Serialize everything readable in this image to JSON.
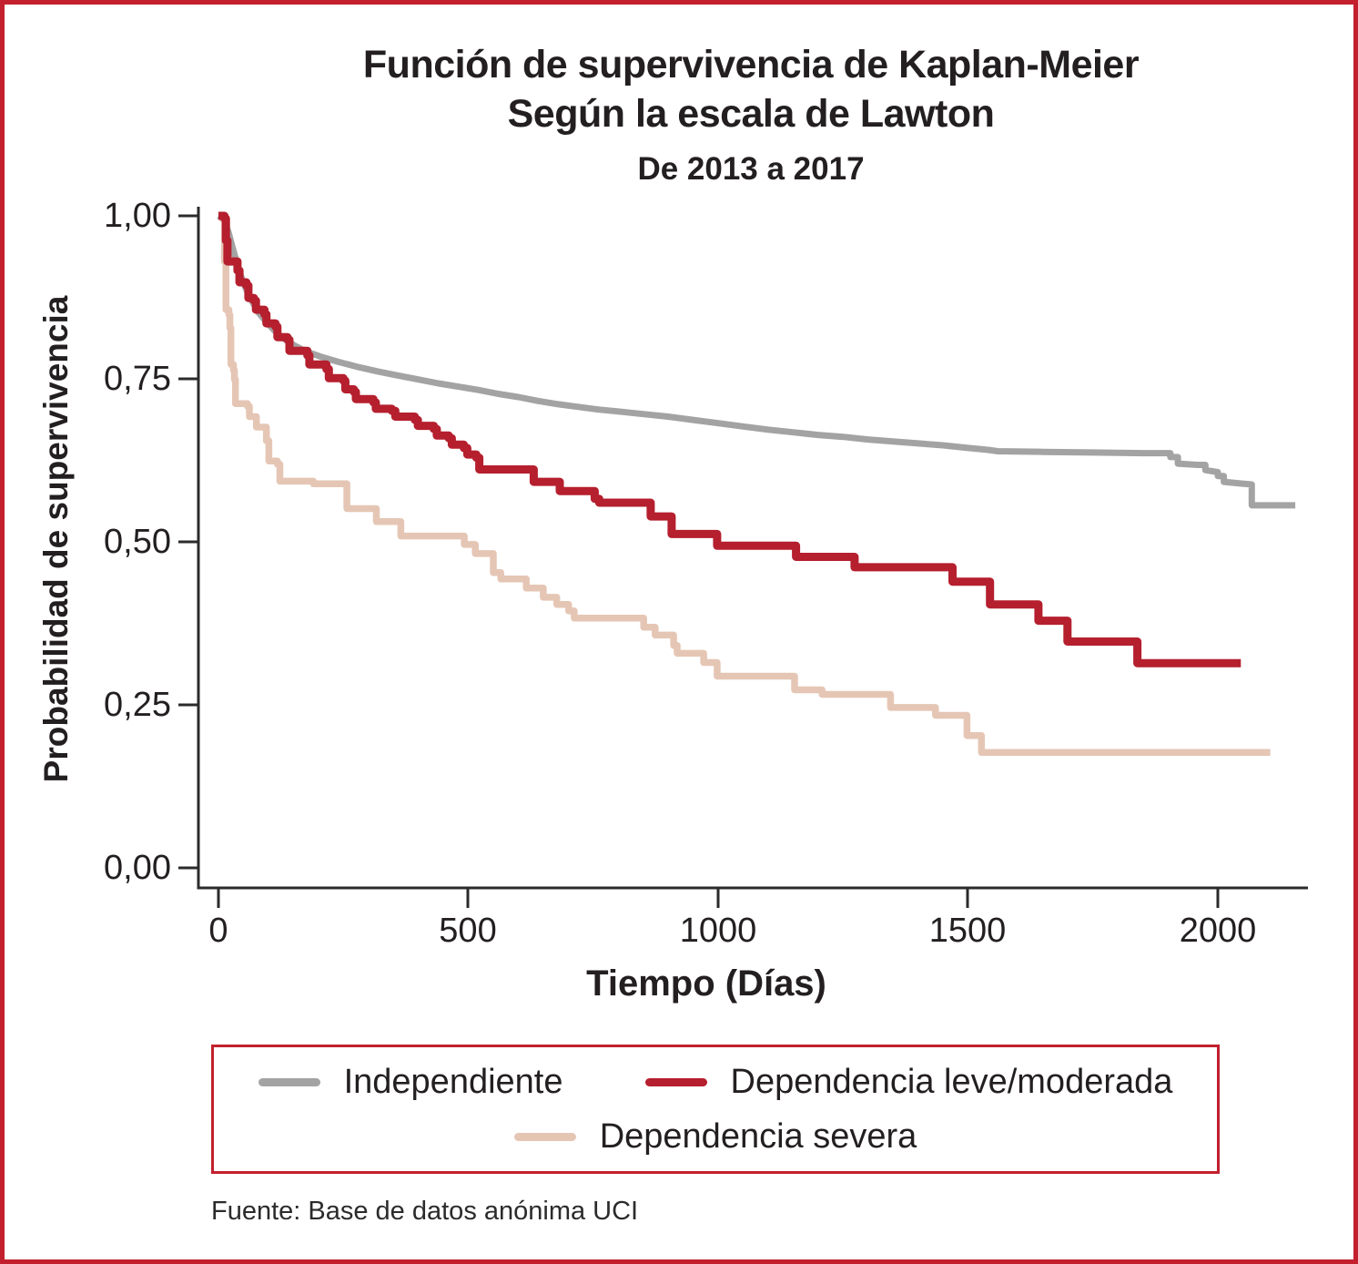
{
  "header": {
    "title_line1": "Función de supervivencia de Kaplan-Meier",
    "title_line2": "Según la escala de Lawton",
    "subtitle": "De 2013 a 2017"
  },
  "footer": {
    "text": "Fuente: Base de datos anónima UCI"
  },
  "colors": {
    "frame": "#c2202e",
    "legend_border": "#c2202e",
    "axis": "#2b2b2b",
    "independiente": "#a3a3a3",
    "dependencia_leve_moderada": "#b51f2e",
    "dependencia_severa": "#e5c6b5"
  },
  "legend": {
    "items": [
      {
        "label": "Independiente",
        "color": "#a3a3a3"
      },
      {
        "label": "Dependencia leve/moderada",
        "color": "#b51f2e"
      },
      {
        "label": "Dependencia severa",
        "color": "#e5c6b5"
      }
    ]
  },
  "chart_data": {
    "type": "line",
    "subtype": "kaplan-meier-survival-step",
    "title": "Función de supervivencia de Kaplan-Meier Según la escala de Lawton",
    "subtitle": "De 2013 a 2017",
    "xlabel": "Tiempo (Días)",
    "ylabel": "Probabilidad de supervivencia",
    "xlim": [
      0,
      2180
    ],
    "ylim": [
      0.0,
      1.0
    ],
    "grid": false,
    "legend_position": "bottom-boxed",
    "x_ticks": [
      {
        "value": 0,
        "label": "0"
      },
      {
        "value": 500,
        "label": "500"
      },
      {
        "value": 1000,
        "label": "1000"
      },
      {
        "value": 1500,
        "label": "1500"
      },
      {
        "value": 2000,
        "label": "2000"
      }
    ],
    "y_ticks": [
      {
        "value": 1.0,
        "label": "1,00"
      },
      {
        "value": 0.75,
        "label": "0,75"
      },
      {
        "value": 0.5,
        "label": "0,50"
      },
      {
        "value": 0.25,
        "label": "0,25"
      },
      {
        "value": 0.0,
        "label": "0,00"
      }
    ],
    "series": [
      {
        "name": "Independiente",
        "color": "#a3a3a3",
        "interpolation": "linear",
        "points": [
          [
            0,
            1.0
          ],
          [
            10,
            0.996
          ],
          [
            20,
            0.975
          ],
          [
            28,
            0.952
          ],
          [
            36,
            0.93
          ],
          [
            45,
            0.908
          ],
          [
            55,
            0.888
          ],
          [
            68,
            0.868
          ],
          [
            80,
            0.852
          ],
          [
            95,
            0.838
          ],
          [
            112,
            0.824
          ],
          [
            130,
            0.812
          ],
          [
            150,
            0.802
          ],
          [
            175,
            0.792
          ],
          [
            205,
            0.784
          ],
          [
            240,
            0.776
          ],
          [
            280,
            0.768
          ],
          [
            320,
            0.761
          ],
          [
            360,
            0.755
          ],
          [
            400,
            0.749
          ],
          [
            440,
            0.743
          ],
          [
            480,
            0.738
          ],
          [
            520,
            0.733
          ],
          [
            560,
            0.727
          ],
          [
            600,
            0.722
          ],
          [
            640,
            0.716
          ],
          [
            680,
            0.711
          ],
          [
            720,
            0.707
          ],
          [
            760,
            0.703
          ],
          [
            800,
            0.7
          ],
          [
            850,
            0.696
          ],
          [
            900,
            0.692
          ],
          [
            950,
            0.687
          ],
          [
            1000,
            0.682
          ],
          [
            1050,
            0.677
          ],
          [
            1100,
            0.672
          ],
          [
            1150,
            0.668
          ],
          [
            1200,
            0.664
          ],
          [
            1250,
            0.661
          ],
          [
            1300,
            0.657
          ],
          [
            1350,
            0.654
          ],
          [
            1400,
            0.651
          ],
          [
            1450,
            0.648
          ],
          [
            1500,
            0.644
          ],
          [
            1540,
            0.641
          ],
          [
            1560,
            0.639
          ],
          [
            1650,
            0.638
          ],
          [
            1750,
            0.637
          ],
          [
            1850,
            0.636
          ],
          [
            1905,
            0.636
          ],
          [
            1905,
            0.63
          ],
          [
            1920,
            0.63
          ],
          [
            1920,
            0.62
          ],
          [
            1960,
            0.618
          ],
          [
            1975,
            0.618
          ],
          [
            1975,
            0.61
          ],
          [
            2000,
            0.607
          ],
          [
            2000,
            0.601
          ],
          [
            2012,
            0.601
          ],
          [
            2012,
            0.592
          ],
          [
            2040,
            0.59
          ],
          [
            2068,
            0.588
          ],
          [
            2068,
            0.556
          ],
          [
            2155,
            0.556
          ]
        ]
      },
      {
        "name": "Dependencia leve/moderada",
        "color": "#b51f2e",
        "interpolation": "step",
        "points": [
          [
            0,
            1.0
          ],
          [
            12,
            0.996
          ],
          [
            15,
            0.962
          ],
          [
            18,
            0.93
          ],
          [
            38,
            0.916
          ],
          [
            42,
            0.898
          ],
          [
            56,
            0.893
          ],
          [
            60,
            0.874
          ],
          [
            71,
            0.87
          ],
          [
            75,
            0.856
          ],
          [
            92,
            0.849
          ],
          [
            96,
            0.835
          ],
          [
            114,
            0.83
          ],
          [
            118,
            0.814
          ],
          [
            138,
            0.81
          ],
          [
            142,
            0.793
          ],
          [
            178,
            0.786
          ],
          [
            182,
            0.772
          ],
          [
            216,
            0.765
          ],
          [
            221,
            0.751
          ],
          [
            250,
            0.747
          ],
          [
            254,
            0.734
          ],
          [
            271,
            0.73
          ],
          [
            275,
            0.719
          ],
          [
            310,
            0.714
          ],
          [
            315,
            0.704
          ],
          [
            347,
            0.701
          ],
          [
            354,
            0.692
          ],
          [
            393,
            0.687
          ],
          [
            399,
            0.678
          ],
          [
            431,
            0.673
          ],
          [
            437,
            0.663
          ],
          [
            461,
            0.659
          ],
          [
            467,
            0.649
          ],
          [
            491,
            0.644
          ],
          [
            498,
            0.634
          ],
          [
            516,
            0.629
          ],
          [
            522,
            0.611
          ],
          [
            631,
            0.592
          ],
          [
            683,
            0.578
          ],
          [
            753,
            0.566
          ],
          [
            762,
            0.56
          ],
          [
            865,
            0.539
          ],
          [
            907,
            0.512
          ],
          [
            998,
            0.494
          ],
          [
            1156,
            0.477
          ],
          [
            1273,
            0.461
          ],
          [
            1469,
            0.439
          ],
          [
            1544,
            0.404
          ],
          [
            1641,
            0.379
          ],
          [
            1699,
            0.347
          ],
          [
            1839,
            0.314
          ],
          [
            2046,
            0.314
          ]
        ]
      },
      {
        "name": "Dependencia severa",
        "color": "#e5c6b5",
        "interpolation": "step",
        "points": [
          [
            0,
            1.0
          ],
          [
            8,
            0.995
          ],
          [
            12,
            0.93
          ],
          [
            15,
            0.856
          ],
          [
            21,
            0.848
          ],
          [
            23,
            0.828
          ],
          [
            25,
            0.772
          ],
          [
            30,
            0.763
          ],
          [
            32,
            0.749
          ],
          [
            34,
            0.712
          ],
          [
            58,
            0.708
          ],
          [
            62,
            0.692
          ],
          [
            76,
            0.676
          ],
          [
            96,
            0.655
          ],
          [
            101,
            0.624
          ],
          [
            118,
            0.619
          ],
          [
            123,
            0.593
          ],
          [
            190,
            0.589
          ],
          [
            257,
            0.551
          ],
          [
            316,
            0.531
          ],
          [
            365,
            0.509
          ],
          [
            492,
            0.496
          ],
          [
            514,
            0.482
          ],
          [
            550,
            0.453
          ],
          [
            565,
            0.443
          ],
          [
            616,
            0.429
          ],
          [
            650,
            0.415
          ],
          [
            677,
            0.404
          ],
          [
            701,
            0.394
          ],
          [
            712,
            0.383
          ],
          [
            851,
            0.369
          ],
          [
            874,
            0.357
          ],
          [
            911,
            0.341
          ],
          [
            918,
            0.329
          ],
          [
            971,
            0.315
          ],
          [
            998,
            0.294
          ],
          [
            1153,
            0.273
          ],
          [
            1208,
            0.266
          ],
          [
            1345,
            0.246
          ],
          [
            1435,
            0.234
          ],
          [
            1498,
            0.203
          ],
          [
            1527,
            0.177
          ],
          [
            2105,
            0.177
          ]
        ]
      }
    ]
  }
}
